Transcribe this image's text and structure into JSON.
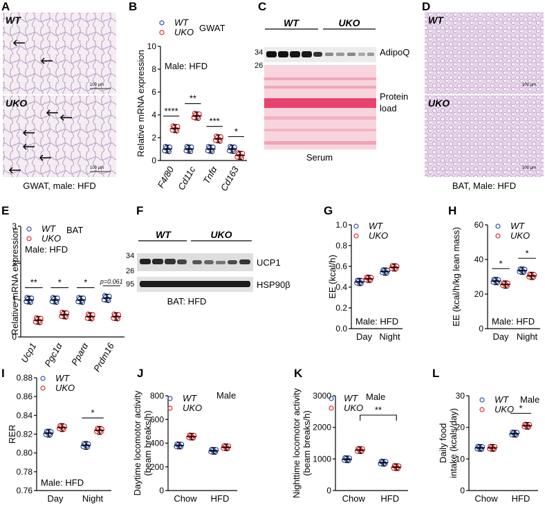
{
  "colors": {
    "wt": "#2f4fa8",
    "uko": "#e02a2a"
  },
  "legend": {
    "wt": "WT",
    "uko": "UKO"
  },
  "panels": {
    "A": {
      "label": "A",
      "top": "WT",
      "bottom": "UKO",
      "caption": "GWAT, male: HFD",
      "scale_text": "100 µm"
    },
    "C": {
      "label": "C",
      "wt": "WT",
      "uko": "UKO",
      "mw_top": "34",
      "mw_bot": "26",
      "blot": "AdipoQ",
      "load_1": "Protein",
      "load_2": "load",
      "caption": "Serum"
    },
    "D": {
      "label": "D",
      "top": "WT",
      "bottom": "UKO",
      "caption": "BAT, Male: HFD",
      "scale_text": "100 µm"
    },
    "F": {
      "label": "F",
      "wt": "WT",
      "uko": "UKO",
      "mw1": "34",
      "mw2": "26",
      "mw3": "95",
      "blot1": "UCP1",
      "blot2": "HSP90β",
      "caption": "BAT: HFD"
    }
  },
  "chart_data": [
    {
      "id": "B",
      "type": "scatter",
      "panel_label": "B",
      "ylabel": "Relative mRNA expression",
      "ylim": [
        0,
        10
      ],
      "yticks": [
        "0",
        "2",
        "4",
        "6",
        "8",
        "10"
      ],
      "categories": [
        "F4/80",
        "Cd11c",
        "Tnfα",
        "Cd163"
      ],
      "tissue_label": "GWAT",
      "condition": "Male: HFD",
      "wt": [
        1.0,
        1.0,
        1.0,
        1.0
      ],
      "uko": [
        2.8,
        3.9,
        1.9,
        0.45
      ],
      "significance": [
        "****",
        "**",
        "***",
        "*"
      ]
    },
    {
      "id": "E",
      "type": "scatter",
      "panel_label": "E",
      "ylabel": "Relative mRNA expression",
      "ylim": [
        0,
        3
      ],
      "yticks": [
        "0",
        "1",
        "2",
        "3"
      ],
      "categories": [
        "Ucp1",
        "Pgc1α",
        "Pparα",
        "Prdm16"
      ],
      "tissue_label": "BAT",
      "condition": "Male: HFD",
      "wt": [
        1.0,
        1.0,
        1.0,
        1.05
      ],
      "uko": [
        0.45,
        0.6,
        0.55,
        0.55
      ],
      "significance": [
        "**",
        "*",
        "*",
        "p=0.061"
      ]
    },
    {
      "id": "G",
      "type": "scatter",
      "panel_label": "G",
      "ylabel": "EE (kcal/h)",
      "ylim": [
        0,
        1.0
      ],
      "yticks": [
        "0.0",
        "0.2",
        "0.4",
        "0.6",
        "0.8",
        "1.0"
      ],
      "categories": [
        "Day",
        "Night"
      ],
      "condition": "Male: HFD",
      "wt": [
        0.45,
        0.55
      ],
      "uko": [
        0.48,
        0.59
      ],
      "significance": [
        "",
        ""
      ]
    },
    {
      "id": "H",
      "type": "scatter",
      "panel_label": "H",
      "ylabel": "EE (kcal/h/kg lean mass)",
      "ylim": [
        0,
        60
      ],
      "yticks": [
        "0",
        "20",
        "40",
        "60"
      ],
      "categories": [
        "Day",
        "Night"
      ],
      "condition": "Male: HFD",
      "wt": [
        27.5,
        33.5
      ],
      "uko": [
        25.5,
        30.5
      ],
      "significance": [
        "*",
        "*"
      ]
    },
    {
      "id": "I",
      "type": "scatter",
      "panel_label": "I",
      "ylabel": "RER",
      "ylim": [
        0.76,
        0.88
      ],
      "yticks": [
        "0.76",
        "0.78",
        "0.80",
        "0.82",
        "0.84",
        "0.86",
        "0.88"
      ],
      "categories": [
        "Day",
        "Night"
      ],
      "condition": "Male: HFD",
      "wt": [
        0.821,
        0.808
      ],
      "uko": [
        0.827,
        0.824
      ],
      "significance": [
        "",
        "*"
      ]
    },
    {
      "id": "J",
      "type": "scatter",
      "panel_label": "J",
      "ylabel": "Daytime locomotor activity (beam breaks/h)",
      "ylim": [
        0,
        800
      ],
      "yticks": [
        "0",
        "200",
        "400",
        "600",
        "800"
      ],
      "categories": [
        "Chow",
        "HFD"
      ],
      "condition": "Male",
      "wt": [
        380,
        335
      ],
      "uko": [
        455,
        365
      ],
      "significance": [
        "",
        ""
      ]
    },
    {
      "id": "K",
      "type": "scatter",
      "panel_label": "K",
      "ylabel": "Nighttime locomotor activity (beam breaks/h)",
      "ylim": [
        0,
        3000
      ],
      "yticks": [
        "0",
        "1000",
        "2000",
        "3000"
      ],
      "categories": [
        "Chow",
        "HFD"
      ],
      "condition": "Male",
      "wt": [
        990,
        880
      ],
      "uko": [
        1280,
        740
      ],
      "significance": [
        "**",
        ""
      ]
    },
    {
      "id": "L",
      "type": "scatter",
      "panel_label": "L",
      "ylabel": "Daily food intake (kcals/day)",
      "ylim": [
        0,
        30
      ],
      "yticks": [
        "0",
        "10",
        "20",
        "30"
      ],
      "categories": [
        "Chow",
        "HFD"
      ],
      "condition": "Male",
      "wt": [
        13.5,
        18.0
      ],
      "uko": [
        13.5,
        20.5
      ],
      "significance": [
        "",
        "*"
      ]
    }
  ]
}
